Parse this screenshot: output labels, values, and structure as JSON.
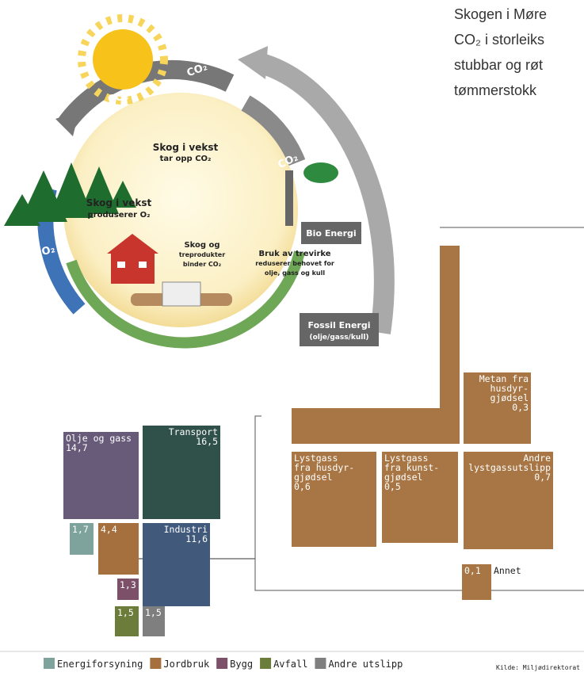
{
  "intro": [
    "Skogen i Møre",
    "CO₂ i storleiks",
    "stubbar og røt",
    "tømmerstokk"
  ],
  "cycle": {
    "arrows": [
      "CO₂",
      "CO₂",
      "CO₂",
      "O₂"
    ],
    "growth_uptake": [
      "Skog i vekst",
      "tar opp CO₂"
    ],
    "growth_oxygen": [
      "Skog i vekst",
      "produserer O₂"
    ],
    "binding": [
      "Skog og",
      "treprodukter",
      "binder CO₂"
    ],
    "bio": "Bio Energi",
    "usage": [
      "Bruk av trevirke",
      "reduserer behovet for",
      "olje, gass og kull"
    ],
    "fossil": [
      "Fossil Energi",
      "(olje/gass/kull)"
    ]
  },
  "sectors": [
    {
      "lines": [
        "Olje og gass",
        "14,7"
      ],
      "align": "start",
      "color": "#675b79"
    },
    {
      "lines": [
        "Transport",
        "16,5"
      ],
      "align": "end",
      "color": "#2f5149"
    },
    {
      "lines": [
        "1,7"
      ],
      "align": "start",
      "color": "#7ea39c"
    },
    {
      "lines": [
        "4,4"
      ],
      "align": "start",
      "color": "#a56f3e"
    },
    {
      "lines": [
        "Industri",
        "11,6"
      ],
      "align": "end",
      "color": "#415a7b"
    },
    {
      "lines": [
        "1,3"
      ],
      "align": "start",
      "color": "#7b5068"
    },
    {
      "lines": [
        "1,5"
      ],
      "align": "start",
      "color": "#6c7c3a"
    },
    {
      "lines": [
        "1,5"
      ],
      "align": "start",
      "color": "#7f7f7f"
    }
  ],
  "agriculture": [
    {
      "lines": [
        "Metan fra",
        "husdyr-",
        "gjødsel",
        "0,3"
      ],
      "align": "end"
    },
    {
      "lines": [
        "Lystgass",
        "fra husdyr-",
        "gjødsel",
        "0,6"
      ],
      "align": "start"
    },
    {
      "lines": [
        "Lystgass",
        "fra kunst-",
        "gjødsel",
        "0,5"
      ],
      "align": "start"
    },
    {
      "lines": [
        "Andre",
        "lystgassutslipp",
        "0,7"
      ],
      "align": "end"
    },
    {
      "lines": [
        "0,1"
      ],
      "align": "start"
    }
  ],
  "annet": "Annet",
  "legend": [
    {
      "label": "Energiforsyning",
      "color": "#7ea39c"
    },
    {
      "label": "Jordbruk",
      "color": "#a56f3e"
    },
    {
      "label": "Bygg",
      "color": "#7b5068"
    },
    {
      "label": "Avfall",
      "color": "#6c7c3a"
    },
    {
      "label": "Andre utslipp",
      "color": "#7f7f7f"
    }
  ],
  "source": "Kilde: Miljødirektorat"
}
